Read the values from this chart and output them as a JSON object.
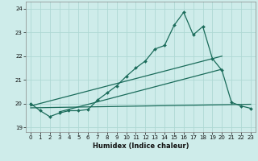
{
  "title": "",
  "xlabel": "Humidex (Indice chaleur)",
  "ylabel": "",
  "background_color": "#ceecea",
  "line_color": "#1a6b5a",
  "grid_color": "#aed8d4",
  "xlim": [
    -0.5,
    23.5
  ],
  "ylim": [
    18.8,
    24.3
  ],
  "yticks": [
    19,
    20,
    21,
    22,
    23,
    24
  ],
  "xticks": [
    0,
    1,
    2,
    3,
    4,
    5,
    6,
    7,
    8,
    9,
    10,
    11,
    12,
    13,
    14,
    15,
    16,
    17,
    18,
    19,
    20,
    21,
    22,
    23
  ],
  "main_x": [
    0,
    1,
    2,
    3,
    4,
    5,
    6,
    7,
    8,
    9,
    10,
    11,
    12,
    13,
    14,
    15,
    16,
    17,
    18,
    19,
    20,
    21,
    22,
    23
  ],
  "main_y": [
    20.0,
    19.7,
    19.45,
    19.6,
    19.7,
    19.7,
    19.75,
    20.15,
    20.45,
    20.75,
    21.15,
    21.5,
    21.8,
    22.3,
    22.45,
    23.3,
    23.85,
    22.9,
    23.25,
    21.9,
    21.4,
    20.05,
    19.9,
    19.8
  ],
  "line1_x": [
    0,
    20
  ],
  "line1_y": [
    19.9,
    22.0
  ],
  "line2_x": [
    0,
    23
  ],
  "line2_y": [
    19.82,
    19.97
  ],
  "line3_x": [
    3,
    20
  ],
  "line3_y": [
    19.65,
    21.45
  ]
}
